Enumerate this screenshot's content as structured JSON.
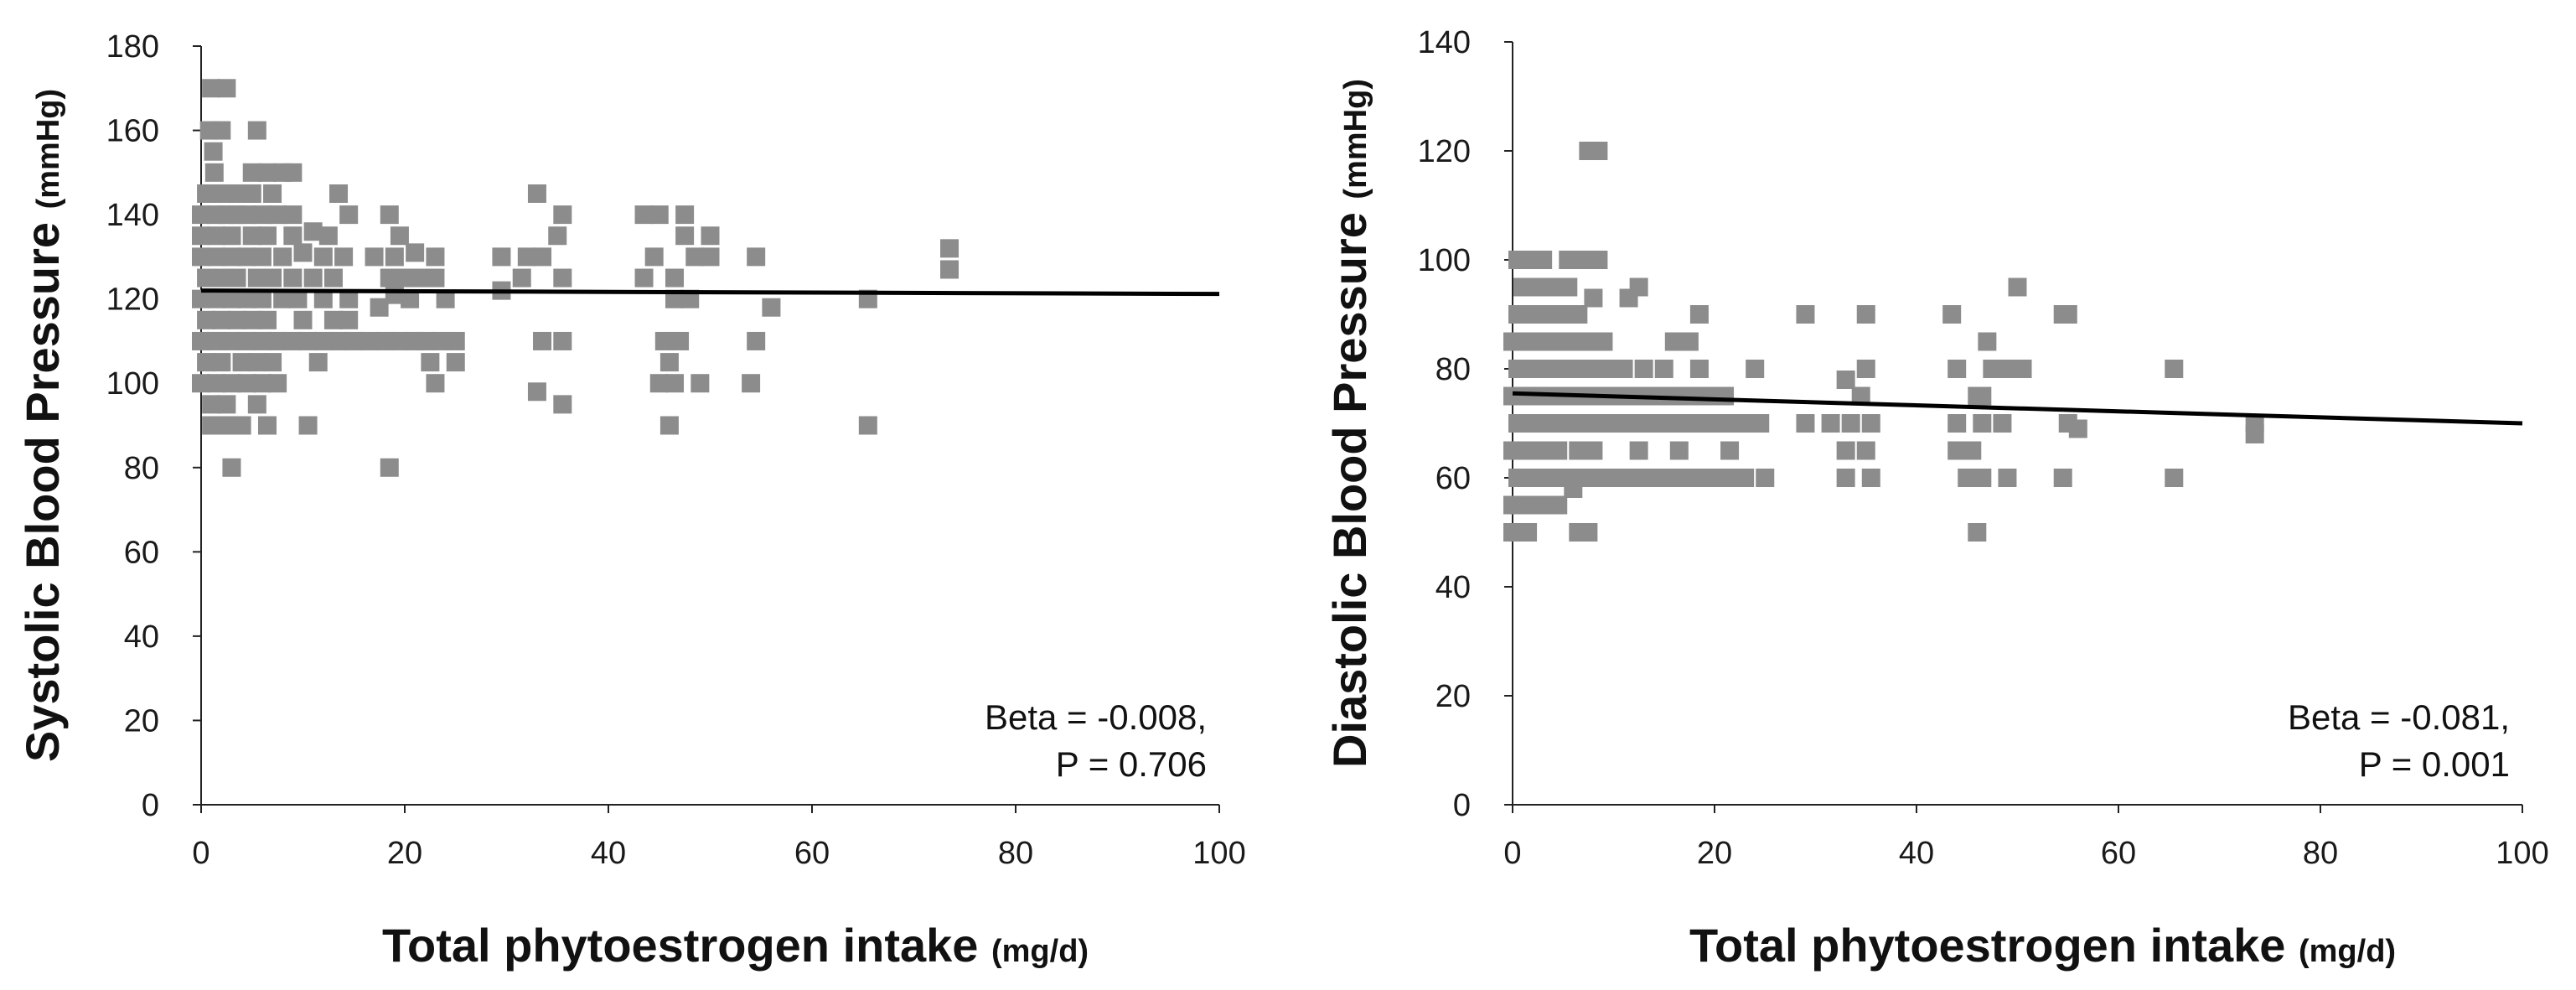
{
  "chart_data": [
    {
      "type": "scatter",
      "title": "",
      "xlabel": "Total phytoestrogen intake",
      "xlabel_unit": "(mg/d)",
      "ylabel": "Systolic Blood Pressure",
      "ylabel_unit": "(mmHg)",
      "xlim": [
        0,
        100
      ],
      "ylim": [
        0,
        180
      ],
      "xticks": [
        0,
        20,
        40,
        60,
        80,
        100
      ],
      "yticks": [
        0,
        20,
        40,
        60,
        80,
        100,
        120,
        140,
        160,
        180
      ],
      "marker_color": "#8c8c8c",
      "trendline": {
        "x": [
          0,
          100
        ],
        "y": [
          122,
          121.2
        ],
        "color": "#000000"
      },
      "annotation": [
        "Beta = -0.008,",
        "P = 0.706"
      ],
      "points": [
        [
          1,
          170
        ],
        [
          2.5,
          170
        ],
        [
          0.8,
          160
        ],
        [
          2,
          160
        ],
        [
          5.5,
          160
        ],
        [
          1.2,
          155
        ],
        [
          1.3,
          150
        ],
        [
          5,
          150
        ],
        [
          6.5,
          150
        ],
        [
          8,
          150
        ],
        [
          9,
          150
        ],
        [
          0.5,
          145
        ],
        [
          2,
          145
        ],
        [
          3.5,
          145
        ],
        [
          5,
          145
        ],
        [
          7,
          145
        ],
        [
          13.5,
          145
        ],
        [
          33,
          145
        ],
        [
          0,
          140
        ],
        [
          1.5,
          140
        ],
        [
          2.5,
          140
        ],
        [
          3.5,
          140
        ],
        [
          4.5,
          140
        ],
        [
          6,
          140
        ],
        [
          7.5,
          140
        ],
        [
          9,
          140
        ],
        [
          14.5,
          140
        ],
        [
          18.5,
          140
        ],
        [
          35.5,
          140
        ],
        [
          43.5,
          140
        ],
        [
          45,
          140
        ],
        [
          47.5,
          140
        ],
        [
          0,
          135
        ],
        [
          1.5,
          135
        ],
        [
          3,
          135
        ],
        [
          5,
          135
        ],
        [
          6.5,
          135
        ],
        [
          9,
          135
        ],
        [
          11,
          136
        ],
        [
          12.5,
          135
        ],
        [
          19.5,
          135
        ],
        [
          35,
          135
        ],
        [
          47.5,
          135
        ],
        [
          50,
          135
        ],
        [
          0,
          130
        ],
        [
          1.5,
          130
        ],
        [
          3,
          130
        ],
        [
          4.5,
          130
        ],
        [
          6,
          130
        ],
        [
          8,
          130
        ],
        [
          10,
          131
        ],
        [
          12,
          130
        ],
        [
          14,
          130
        ],
        [
          17,
          130
        ],
        [
          19,
          130
        ],
        [
          21,
          131
        ],
        [
          23,
          130
        ],
        [
          29.5,
          130
        ],
        [
          32,
          130
        ],
        [
          33.5,
          130
        ],
        [
          44.5,
          130
        ],
        [
          48.5,
          130
        ],
        [
          50,
          130
        ],
        [
          54.5,
          130
        ],
        [
          73.5,
          132
        ],
        [
          0.5,
          125
        ],
        [
          2,
          125
        ],
        [
          3.5,
          125
        ],
        [
          5.5,
          125
        ],
        [
          7,
          125
        ],
        [
          9,
          125
        ],
        [
          11,
          125
        ],
        [
          13,
          125
        ],
        [
          18.5,
          125
        ],
        [
          20,
          125
        ],
        [
          21.5,
          125
        ],
        [
          23,
          125
        ],
        [
          31.5,
          125
        ],
        [
          35.5,
          125
        ],
        [
          43.5,
          125
        ],
        [
          46.5,
          125
        ],
        [
          73.5,
          127
        ],
        [
          0,
          120
        ],
        [
          1.5,
          120
        ],
        [
          3,
          120
        ],
        [
          4.5,
          120
        ],
        [
          6,
          120
        ],
        [
          8,
          120
        ],
        [
          9.5,
          120
        ],
        [
          12,
          120
        ],
        [
          14.5,
          120
        ],
        [
          19,
          121
        ],
        [
          20.5,
          120
        ],
        [
          24,
          120
        ],
        [
          29.5,
          122
        ],
        [
          46.5,
          120
        ],
        [
          48,
          120
        ],
        [
          56,
          118
        ],
        [
          65.5,
          120
        ],
        [
          0.5,
          115
        ],
        [
          2,
          115
        ],
        [
          3.5,
          115
        ],
        [
          5,
          115
        ],
        [
          6.5,
          115
        ],
        [
          10,
          115
        ],
        [
          13,
          115
        ],
        [
          14.5,
          115
        ],
        [
          17.5,
          118
        ],
        [
          0,
          110
        ],
        [
          1.5,
          110
        ],
        [
          3,
          110
        ],
        [
          4.5,
          110
        ],
        [
          6,
          110
        ],
        [
          7.5,
          110
        ],
        [
          9,
          110
        ],
        [
          10.5,
          110
        ],
        [
          12,
          110
        ],
        [
          13.5,
          110
        ],
        [
          15,
          110
        ],
        [
          16.5,
          110
        ],
        [
          18,
          110
        ],
        [
          19.5,
          110
        ],
        [
          21,
          110
        ],
        [
          22,
          110
        ],
        [
          23.5,
          110
        ],
        [
          25,
          110
        ],
        [
          33.5,
          110
        ],
        [
          35.5,
          110
        ],
        [
          45.5,
          110
        ],
        [
          47,
          110
        ],
        [
          54.5,
          110
        ],
        [
          0.5,
          105
        ],
        [
          2,
          105
        ],
        [
          4,
          105
        ],
        [
          5.5,
          105
        ],
        [
          7,
          105
        ],
        [
          11.5,
          105
        ],
        [
          22.5,
          105
        ],
        [
          25,
          105
        ],
        [
          46,
          105
        ],
        [
          0,
          100
        ],
        [
          1.5,
          100
        ],
        [
          3,
          100
        ],
        [
          4.5,
          100
        ],
        [
          6,
          100
        ],
        [
          7.5,
          100
        ],
        [
          23,
          100
        ],
        [
          45,
          100
        ],
        [
          46.5,
          100
        ],
        [
          49,
          100
        ],
        [
          54,
          100
        ],
        [
          1,
          95
        ],
        [
          2.5,
          95
        ],
        [
          5.5,
          95
        ],
        [
          33,
          98
        ],
        [
          35.5,
          95
        ],
        [
          1,
          90
        ],
        [
          2.5,
          90
        ],
        [
          4,
          90
        ],
        [
          6.5,
          90
        ],
        [
          10.5,
          90
        ],
        [
          46,
          90
        ],
        [
          65.5,
          90
        ],
        [
          3,
          80
        ],
        [
          18.5,
          80
        ]
      ]
    },
    {
      "type": "scatter",
      "title": "",
      "xlabel": "Total phytoestrogen intake",
      "xlabel_unit": "(mg/d)",
      "ylabel": "Diastolic Blood Pressure",
      "ylabel_unit": "(mmHg)",
      "xlim": [
        0,
        100
      ],
      "ylim": [
        0,
        140
      ],
      "xticks": [
        0,
        20,
        40,
        60,
        80,
        100
      ],
      "yticks": [
        0,
        20,
        40,
        60,
        80,
        100,
        120,
        140
      ],
      "marker_color": "#8c8c8c",
      "trendline": {
        "x": [
          0,
          100
        ],
        "y": [
          75.5,
          70
        ],
        "color": "#000000"
      },
      "annotation": [
        "Beta = -0.081,",
        "P = 0.001"
      ],
      "points": [
        [
          7.5,
          120
        ],
        [
          8.5,
          120
        ],
        [
          0.5,
          100
        ],
        [
          1.5,
          100
        ],
        [
          3,
          100
        ],
        [
          5.5,
          100
        ],
        [
          6.5,
          100
        ],
        [
          7.5,
          100
        ],
        [
          8.5,
          100
        ],
        [
          1,
          95
        ],
        [
          2.5,
          95
        ],
        [
          4,
          95
        ],
        [
          5.5,
          95
        ],
        [
          12.5,
          95
        ],
        [
          50,
          95
        ],
        [
          0.5,
          90
        ],
        [
          2,
          90
        ],
        [
          3.5,
          90
        ],
        [
          5,
          90
        ],
        [
          6.5,
          90
        ],
        [
          8,
          93
        ],
        [
          11.5,
          93
        ],
        [
          18.5,
          90
        ],
        [
          29,
          90
        ],
        [
          35,
          90
        ],
        [
          43.5,
          90
        ],
        [
          54.5,
          90
        ],
        [
          55,
          90
        ],
        [
          0,
          85
        ],
        [
          1.5,
          85
        ],
        [
          3,
          85
        ],
        [
          4.5,
          85
        ],
        [
          6,
          85
        ],
        [
          7.5,
          85
        ],
        [
          9,
          85
        ],
        [
          16,
          85
        ],
        [
          17.5,
          85
        ],
        [
          47,
          85
        ],
        [
          0.5,
          80
        ],
        [
          2,
          80
        ],
        [
          3.5,
          80
        ],
        [
          5,
          80
        ],
        [
          6.5,
          80
        ],
        [
          8,
          80
        ],
        [
          9.5,
          80
        ],
        [
          11,
          80
        ],
        [
          13,
          80
        ],
        [
          15,
          80
        ],
        [
          18.5,
          80
        ],
        [
          24,
          80
        ],
        [
          35,
          80
        ],
        [
          44,
          80
        ],
        [
          47.5,
          80
        ],
        [
          49,
          80
        ],
        [
          50.5,
          80
        ],
        [
          65.5,
          80
        ],
        [
          0,
          75
        ],
        [
          1.5,
          75
        ],
        [
          3,
          75
        ],
        [
          4.5,
          75
        ],
        [
          6,
          75
        ],
        [
          7.5,
          75
        ],
        [
          9,
          75
        ],
        [
          10.5,
          75
        ],
        [
          12,
          75
        ],
        [
          13.5,
          75
        ],
        [
          15,
          75
        ],
        [
          16.5,
          75
        ],
        [
          18,
          75
        ],
        [
          19.5,
          75
        ],
        [
          21,
          75
        ],
        [
          33,
          78
        ],
        [
          34.5,
          75
        ],
        [
          46,
          75
        ],
        [
          46.5,
          75
        ],
        [
          0.5,
          70
        ],
        [
          2,
          70
        ],
        [
          3.5,
          70
        ],
        [
          5,
          70
        ],
        [
          6.5,
          70
        ],
        [
          8,
          70
        ],
        [
          9.5,
          70
        ],
        [
          11,
          70
        ],
        [
          12.5,
          70
        ],
        [
          14,
          70
        ],
        [
          15.5,
          70
        ],
        [
          17,
          70
        ],
        [
          18.5,
          70
        ],
        [
          20,
          70
        ],
        [
          21.5,
          70
        ],
        [
          23,
          70
        ],
        [
          24.5,
          70
        ],
        [
          29,
          70
        ],
        [
          31.5,
          70
        ],
        [
          33.5,
          70
        ],
        [
          35.5,
          70
        ],
        [
          44,
          70
        ],
        [
          46.5,
          70
        ],
        [
          48.5,
          70
        ],
        [
          55,
          70
        ],
        [
          56,
          69
        ],
        [
          73.5,
          70
        ],
        [
          0,
          65
        ],
        [
          1.5,
          65
        ],
        [
          3,
          65
        ],
        [
          4.5,
          65
        ],
        [
          6.5,
          65
        ],
        [
          8,
          65
        ],
        [
          12.5,
          65
        ],
        [
          16.5,
          65
        ],
        [
          21.5,
          65
        ],
        [
          33,
          65
        ],
        [
          35,
          65
        ],
        [
          44,
          65
        ],
        [
          45.5,
          65
        ],
        [
          73.5,
          68
        ],
        [
          0.5,
          60
        ],
        [
          2,
          60
        ],
        [
          3.5,
          60
        ],
        [
          5,
          60
        ],
        [
          6.5,
          60
        ],
        [
          8,
          60
        ],
        [
          9.5,
          60
        ],
        [
          11,
          60
        ],
        [
          12.5,
          60
        ],
        [
          14,
          60
        ],
        [
          15.5,
          60
        ],
        [
          17,
          60
        ],
        [
          18.5,
          60
        ],
        [
          20,
          60
        ],
        [
          21.5,
          60
        ],
        [
          23,
          60
        ],
        [
          25,
          60
        ],
        [
          33,
          60
        ],
        [
          35.5,
          60
        ],
        [
          45,
          60
        ],
        [
          46.5,
          60
        ],
        [
          49,
          60
        ],
        [
          54.5,
          60
        ],
        [
          65.5,
          60
        ],
        [
          0,
          55
        ],
        [
          1.5,
          55
        ],
        [
          3,
          55
        ],
        [
          4.5,
          55
        ],
        [
          6,
          58
        ],
        [
          0,
          50
        ],
        [
          1.5,
          50
        ],
        [
          6.5,
          50
        ],
        [
          7.5,
          50
        ],
        [
          46,
          50
        ]
      ]
    }
  ]
}
